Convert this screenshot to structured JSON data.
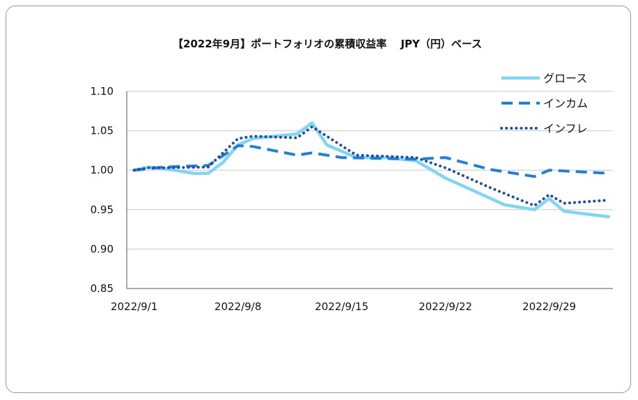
{
  "chart_data": {
    "type": "line",
    "title": "【2022年9月】ポートフォリオの累積収益率　 JPY（円）ベース",
    "xlabel": "",
    "ylabel": "",
    "ylim": [
      0.85,
      1.1
    ],
    "yticks": [
      "1.10",
      "1.05",
      "1.00",
      "0.95",
      "0.90",
      "0.85"
    ],
    "ytick_values": [
      1.1,
      1.05,
      1.0,
      0.95,
      0.9,
      0.85
    ],
    "xticks": [
      {
        "label": "2022/9/1",
        "day": 1
      },
      {
        "label": "2022/9/8",
        "day": 8
      },
      {
        "label": "2022/9/15",
        "day": 15
      },
      {
        "label": "2022/9/22",
        "day": 22
      },
      {
        "label": "2022/9/29",
        "day": 29
      }
    ],
    "x_range": [
      0.5,
      33.3
    ],
    "grid": true,
    "legend_position": "top-right",
    "series": [
      {
        "name": "グロース",
        "color": "#7fd6f4",
        "style": "solid",
        "points": [
          [
            1,
            1.0
          ],
          [
            2,
            1.004
          ],
          [
            3,
            1.002
          ],
          [
            5,
            0.996
          ],
          [
            6,
            0.996
          ],
          [
            7,
            1.01
          ],
          [
            8,
            1.032
          ],
          [
            9,
            1.04
          ],
          [
            11,
            1.044
          ],
          [
            12,
            1.046
          ],
          [
            13,
            1.06
          ],
          [
            14,
            1.032
          ],
          [
            16,
            1.016
          ],
          [
            18,
            1.016
          ],
          [
            19,
            1.014
          ],
          [
            20,
            1.012
          ],
          [
            22,
            0.99
          ],
          [
            26,
            0.956
          ],
          [
            28,
            0.95
          ],
          [
            29,
            0.964
          ],
          [
            30,
            0.948
          ],
          [
            33,
            0.941
          ]
        ]
      },
      {
        "name": "インカム",
        "color": "#1f7fe0",
        "style": "dashed",
        "points": [
          [
            1,
            1.0
          ],
          [
            3,
            1.004
          ],
          [
            6,
            1.006
          ],
          [
            8,
            1.031
          ],
          [
            9,
            1.03
          ],
          [
            12,
            1.019
          ],
          [
            13,
            1.022
          ],
          [
            15,
            1.016
          ],
          [
            20,
            1.014
          ],
          [
            22,
            1.016
          ],
          [
            25,
            1.001
          ],
          [
            28,
            0.992
          ],
          [
            29,
            1.0
          ],
          [
            33,
            0.996
          ]
        ]
      },
      {
        "name": "インフレ",
        "color": "#1e4da8",
        "style": "dotted",
        "points": [
          [
            1,
            1.0
          ],
          [
            2,
            1.003
          ],
          [
            3,
            1.003
          ],
          [
            6,
            1.004
          ],
          [
            8,
            1.04
          ],
          [
            9,
            1.043
          ],
          [
            12,
            1.041
          ],
          [
            13,
            1.055
          ],
          [
            15,
            1.031
          ],
          [
            16,
            1.019
          ],
          [
            20,
            1.016
          ],
          [
            22,
            1.003
          ],
          [
            25,
            0.978
          ],
          [
            28,
            0.955
          ],
          [
            29,
            0.969
          ],
          [
            30,
            0.958
          ],
          [
            33,
            0.962
          ]
        ]
      }
    ]
  }
}
